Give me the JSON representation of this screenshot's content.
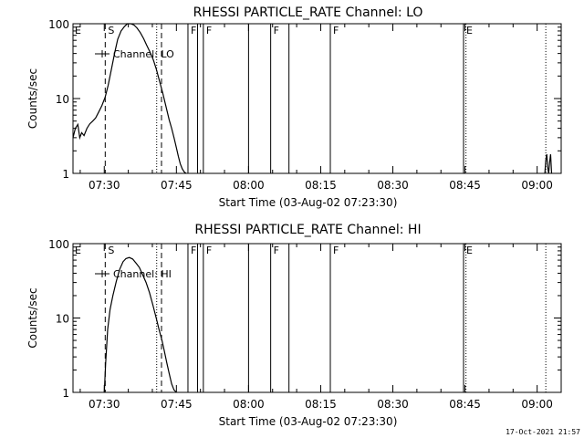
{
  "footer": {
    "date_stamp": "17-Oct-2021 21:57"
  },
  "chart_data": [
    {
      "type": "line",
      "title": "RHESSI PARTICLE_RATE Channel: LO",
      "xlabel": "Start Time (03-Aug-02 07:23:30)",
      "ylabel": "Counts/sec",
      "yscale": "log",
      "ylim": [
        1,
        100
      ],
      "xlim_minutes": [
        443.5,
        545.0
      ],
      "x_ticks": [
        {
          "t": 450,
          "label": "07:30"
        },
        {
          "t": 465,
          "label": "07:45"
        },
        {
          "t": 480,
          "label": "08:00"
        },
        {
          "t": 495,
          "label": "08:15"
        },
        {
          "t": 510,
          "label": "08:30"
        },
        {
          "t": 525,
          "label": "08:45"
        },
        {
          "t": 540,
          "label": "09:00"
        }
      ],
      "y_ticks": [
        {
          "v": 1,
          "label": "1"
        },
        {
          "v": 10,
          "label": "10"
        },
        {
          "v": 100,
          "label": "100"
        }
      ],
      "legend": {
        "label": "Channel: LO",
        "placement": "top-left"
      },
      "series": [
        {
          "name": "Channel: LO",
          "x": [
            443.5,
            444.0,
            444.5,
            444.9,
            445.3,
            445.8,
            446.4,
            447.0,
            447.6,
            448.2,
            448.8,
            449.5,
            450.2,
            450.8,
            451.5,
            452.2,
            452.8,
            453.5,
            454.2,
            454.8,
            455.5,
            456.2,
            456.8,
            457.5,
            458.2,
            458.8,
            459.5,
            460.2,
            460.8,
            461.5,
            462.2,
            462.8,
            463.5,
            464.0,
            464.5,
            465.0,
            465.4,
            465.8,
            466.2,
            466.6,
            467.0
          ],
          "y": [
            3.0,
            4.0,
            4.5,
            3.0,
            3.5,
            3.2,
            4.0,
            4.6,
            5.0,
            5.5,
            6.5,
            8.0,
            10.5,
            15.0,
            25.0,
            42.0,
            62.0,
            80.0,
            92.0,
            100,
            100,
            96,
            88,
            76,
            63,
            52,
            42,
            33,
            25,
            17,
            11.5,
            8.0,
            5.2,
            4.0,
            3.0,
            2.2,
            1.7,
            1.35,
            1.15,
            1.05,
            1.0
          ]
        },
        {
          "name": "",
          "x": [
            541.6,
            541.8,
            542.0,
            542.2,
            542.4,
            542.6,
            542.8,
            543.0
          ],
          "y": [
            1.0,
            1.5,
            1.8,
            1.2,
            1.0,
            1.4,
            1.8,
            1.0
          ]
        }
      ],
      "markers": [
        {
          "t": 450.2,
          "style": "dashed",
          "label": "S"
        },
        {
          "t": 461.9,
          "style": "dashed",
          "label": ""
        },
        {
          "t": 460.9,
          "style": "dotted",
          "label": ""
        },
        {
          "t": 467.4,
          "style": "solid",
          "label": "F"
        },
        {
          "t": 469.4,
          "style": "solid",
          "label": ""
        },
        {
          "t": 470.6,
          "style": "solid",
          "label": "F"
        },
        {
          "t": 480.0,
          "style": "solid",
          "label": ""
        },
        {
          "t": 484.6,
          "style": "solid",
          "label": "F"
        },
        {
          "t": 488.4,
          "style": "solid",
          "label": ""
        },
        {
          "t": 497.0,
          "style": "solid",
          "label": "F"
        },
        {
          "t": 524.7,
          "style": "solid",
          "label": "E"
        },
        {
          "t": 525.2,
          "style": "dotted",
          "label": ""
        },
        {
          "t": 541.8,
          "style": "dotted",
          "label": ""
        }
      ],
      "edge_labels": [
        "E"
      ]
    },
    {
      "type": "line",
      "title": "RHESSI PARTICLE_RATE Channel: HI",
      "xlabel": "Start Time (03-Aug-02 07:23:30)",
      "ylabel": "Counts/sec",
      "yscale": "log",
      "ylim": [
        1,
        100
      ],
      "xlim_minutes": [
        443.5,
        545.0
      ],
      "x_ticks": [
        {
          "t": 450,
          "label": "07:30"
        },
        {
          "t": 465,
          "label": "07:45"
        },
        {
          "t": 480,
          "label": "08:00"
        },
        {
          "t": 495,
          "label": "08:15"
        },
        {
          "t": 510,
          "label": "08:30"
        },
        {
          "t": 525,
          "label": "08:45"
        },
        {
          "t": 540,
          "label": "09:00"
        }
      ],
      "y_ticks": [
        {
          "v": 1,
          "label": "1"
        },
        {
          "v": 10,
          "label": "10"
        },
        {
          "v": 100,
          "label": "100"
        }
      ],
      "legend": {
        "label": "Channel: HI",
        "placement": "top-left"
      },
      "series": [
        {
          "name": "Channel: HI",
          "x": [
            450.0,
            450.3,
            450.7,
            451.2,
            451.8,
            452.5,
            453.2,
            453.9,
            454.5,
            455.2,
            455.9,
            456.6,
            457.3,
            458.0,
            458.7,
            459.4,
            460.1,
            460.8,
            461.4,
            462.0,
            462.5,
            463.0,
            463.5,
            464.0,
            464.5,
            465.0
          ],
          "y": [
            1.0,
            2.5,
            7.0,
            13,
            20,
            31,
            45,
            57,
            63,
            65,
            62,
            55,
            48,
            38,
            30,
            22,
            15,
            10,
            7,
            5,
            3.6,
            2.5,
            1.8,
            1.3,
            1.08,
            1.0
          ]
        }
      ],
      "markers": [
        {
          "t": 450.2,
          "style": "dashed",
          "label": "S"
        },
        {
          "t": 461.9,
          "style": "dashed",
          "label": ""
        },
        {
          "t": 460.9,
          "style": "dotted",
          "label": ""
        },
        {
          "t": 467.4,
          "style": "solid",
          "label": "F"
        },
        {
          "t": 469.4,
          "style": "solid",
          "label": ""
        },
        {
          "t": 470.6,
          "style": "solid",
          "label": "F"
        },
        {
          "t": 480.0,
          "style": "solid",
          "label": ""
        },
        {
          "t": 484.6,
          "style": "solid",
          "label": "F"
        },
        {
          "t": 488.4,
          "style": "solid",
          "label": ""
        },
        {
          "t": 497.0,
          "style": "solid",
          "label": "F"
        },
        {
          "t": 524.7,
          "style": "solid",
          "label": "E"
        },
        {
          "t": 525.2,
          "style": "dotted",
          "label": ""
        },
        {
          "t": 541.8,
          "style": "dotted",
          "label": ""
        }
      ],
      "edge_labels": [
        "E"
      ]
    }
  ]
}
